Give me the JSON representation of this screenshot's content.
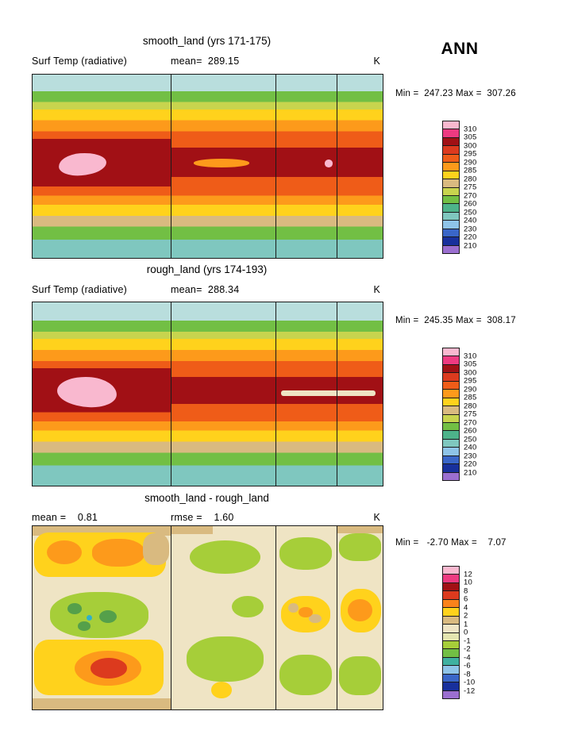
{
  "season_title": "ANN",
  "palette": {
    "pink": "#f9b8cf",
    "magenta": "#ee3a81",
    "darkred": "#a11015",
    "red": "#dc3a1e",
    "redorange": "#ef5c18",
    "orange": "#fd9a1b",
    "yellow": "#ffd21c",
    "tan": "#d9ba80",
    "khaki": "#c8d44e",
    "yellowgreen": "#a6ce39",
    "green": "#72bf44",
    "darkgreen": "#55a04a",
    "tealgreen": "#4db38a",
    "teal": "#7fc7bf",
    "palecyan": "#b9dedd",
    "lightblue": "#8fc4e8",
    "blue": "#3a66c8",
    "darkblue": "#18309c",
    "purple": "#9b6fd0",
    "cream": "#efe4c4",
    "paleolive": "#e4e5b0",
    "cyan": "#30b0c8"
  },
  "panels": [
    {
      "title": "smooth_land (yrs 171-175)",
      "header_left": "Surf Temp (radiative)",
      "header_mid": "mean=  289.15",
      "header_right": "K",
      "minmax": "Min =  247.23 Max =  307.26"
    },
    {
      "title": "rough_land (yrs 174-193)",
      "header_left": "Surf Temp (radiative)",
      "header_mid": "mean=  288.34",
      "header_right": "K",
      "minmax": "Min =  245.35 Max =  308.17"
    },
    {
      "title": "smooth_land - rough_land",
      "header_left": "mean =    0.81",
      "header_mid": "rmse =    1.60",
      "header_right": "K",
      "minmax": "Min =   -2.70 Max =    7.07"
    }
  ],
  "chart_data": [
    {
      "type": "heatmap",
      "title": "smooth_land (yrs 171-175)",
      "variable": "Surf Temp (radiative)",
      "units": "K",
      "season": "ANN",
      "mean": 289.15,
      "min": 247.23,
      "max": 307.26,
      "colorbar": {
        "position": "right",
        "labels": [
          "310",
          "305",
          "300",
          "295",
          "290",
          "285",
          "280",
          "275",
          "270",
          "260",
          "250",
          "240",
          "230",
          "220",
          "210"
        ],
        "colors": [
          "#f9b8cf",
          "#ee3a81",
          "#a11015",
          "#dc3a1e",
          "#ef5c18",
          "#fd9a1b",
          "#ffd21c",
          "#d9ba80",
          "#c8d44e",
          "#72bf44",
          "#4db38a",
          "#7fc7bf",
          "#8fc4e8",
          "#3a66c8",
          "#18309c",
          "#9b6fd0"
        ]
      },
      "bands": [
        {
          "color": "#b9dedd",
          "to": 9
        },
        {
          "color": "#72bf44",
          "to": 15
        },
        {
          "color": "#c8d44e",
          "to": 19
        },
        {
          "color": "#ffd21c",
          "to": 25
        },
        {
          "color": "#fd9a1b",
          "to": 31
        },
        {
          "color": "#ef5c18",
          "to": 35
        },
        {
          "color": "#a11015",
          "to": 61
        },
        {
          "color": "#ef5c18",
          "to": 66
        },
        {
          "color": "#fd9a1b",
          "to": 71
        },
        {
          "color": "#ffd21c",
          "to": 77
        },
        {
          "color": "#d9ba80",
          "to": 83
        },
        {
          "color": "#72bf44",
          "to": 90
        },
        {
          "color": "#7fc7bf",
          "to": 100
        }
      ]
    },
    {
      "type": "heatmap",
      "title": "rough_land (yrs 174-193)",
      "variable": "Surf Temp (radiative)",
      "units": "K",
      "season": "ANN",
      "mean": 288.34,
      "min": 245.35,
      "max": 308.17,
      "colorbar": {
        "position": "right",
        "labels": [
          "310",
          "305",
          "300",
          "295",
          "290",
          "285",
          "280",
          "275",
          "270",
          "260",
          "250",
          "240",
          "230",
          "220",
          "210"
        ],
        "colors": [
          "#f9b8cf",
          "#ee3a81",
          "#a11015",
          "#dc3a1e",
          "#ef5c18",
          "#fd9a1b",
          "#ffd21c",
          "#d9ba80",
          "#c8d44e",
          "#72bf44",
          "#4db38a",
          "#7fc7bf",
          "#8fc4e8",
          "#3a66c8",
          "#18309c",
          "#9b6fd0"
        ]
      },
      "bands": [
        {
          "color": "#b9dedd",
          "to": 10
        },
        {
          "color": "#72bf44",
          "to": 16
        },
        {
          "color": "#c8d44e",
          "to": 20
        },
        {
          "color": "#ffd21c",
          "to": 26
        },
        {
          "color": "#fd9a1b",
          "to": 32
        },
        {
          "color": "#ef5c18",
          "to": 36
        },
        {
          "color": "#a11015",
          "to": 60
        },
        {
          "color": "#ef5c18",
          "to": 65
        },
        {
          "color": "#fd9a1b",
          "to": 70
        },
        {
          "color": "#ffd21c",
          "to": 76
        },
        {
          "color": "#d9ba80",
          "to": 82
        },
        {
          "color": "#72bf44",
          "to": 89
        },
        {
          "color": "#7fc7bf",
          "to": 100
        }
      ]
    },
    {
      "type": "heatmap",
      "title": "smooth_land - rough_land",
      "statistic": "difference",
      "units": "K",
      "season": "ANN",
      "mean": 0.81,
      "rmse": 1.6,
      "min": -2.7,
      "max": 7.07,
      "base_color": "#efe4c4",
      "colorbar": {
        "position": "right",
        "labels": [
          "12",
          "10",
          "8",
          "6",
          "4",
          "2",
          "1",
          "0",
          "-1",
          "-2",
          "-4",
          "-6",
          "-8",
          "-10",
          "-12"
        ],
        "colors": [
          "#f9b8cf",
          "#ee3a81",
          "#a11015",
          "#dc3a1e",
          "#f9821b",
          "#ffd21c",
          "#d9ba80",
          "#efe4c4",
          "#e4e5b0",
          "#a6ce39",
          "#72bf44",
          "#3fb0a0",
          "#8fc4e8",
          "#3a66c8",
          "#18309c",
          "#9b6fd0"
        ]
      }
    }
  ]
}
